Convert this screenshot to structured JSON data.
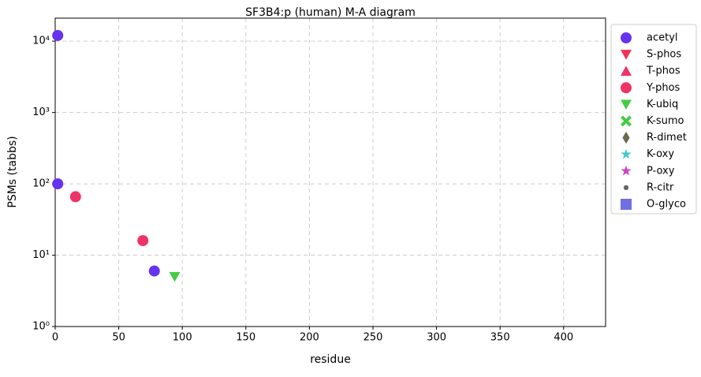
{
  "chart_data": {
    "type": "scatter",
    "title": "SF3B4:p (human) M-A diagram",
    "x_label": "residue",
    "y_label": "PSMs (tabbs)",
    "xlim": [
      0,
      433
    ],
    "ylim": [
      1,
      21000
    ],
    "log_y": true,
    "grid": true,
    "legend": "outside upper right",
    "xticks": [
      0,
      50,
      100,
      150,
      200,
      250,
      300,
      350,
      400
    ],
    "yticks": [
      {
        "value": 1,
        "label": "10⁰"
      },
      {
        "value": 10,
        "label": "10¹"
      },
      {
        "value": 100,
        "label": "10²"
      },
      {
        "value": 1000,
        "label": "10³"
      },
      {
        "value": 10000,
        "label": "10⁴"
      }
    ],
    "series": [
      {
        "name": "acetyl",
        "color": "#6633ee",
        "marker": "circle",
        "x": [
          2,
          2,
          78
        ],
        "values": [
          12000,
          100,
          6
        ]
      },
      {
        "name": "S-phos",
        "color": "#ee3355",
        "marker": "triangle-down",
        "x": [],
        "values": []
      },
      {
        "name": "T-phos",
        "color": "#ee3366",
        "marker": "triangle-up",
        "x": [],
        "values": []
      },
      {
        "name": "Y-phos",
        "color": "#ee3366",
        "marker": "circle",
        "x": [
          16,
          69
        ],
        "values": [
          66,
          16
        ]
      },
      {
        "name": "K-ubiq",
        "color": "#44cc44",
        "marker": "triangle-down",
        "x": [
          94
        ],
        "values": [
          5
        ]
      },
      {
        "name": "K-sumo",
        "color": "#44cc44",
        "marker": "x",
        "x": [],
        "values": []
      },
      {
        "name": "R-dimet",
        "color": "#6b6b4b",
        "marker": "diamond",
        "x": [],
        "values": []
      },
      {
        "name": "K-oxy",
        "color": "#44cccc",
        "marker": "star",
        "x": [],
        "values": []
      },
      {
        "name": "P-oxy",
        "color": "#cc44cc",
        "marker": "star",
        "x": [],
        "values": []
      },
      {
        "name": "R-citr",
        "color": "#666666",
        "marker": "dot",
        "x": [],
        "values": []
      },
      {
        "name": "O-glyco",
        "color": "#7070e0",
        "marker": "square",
        "x": [],
        "values": []
      }
    ]
  }
}
